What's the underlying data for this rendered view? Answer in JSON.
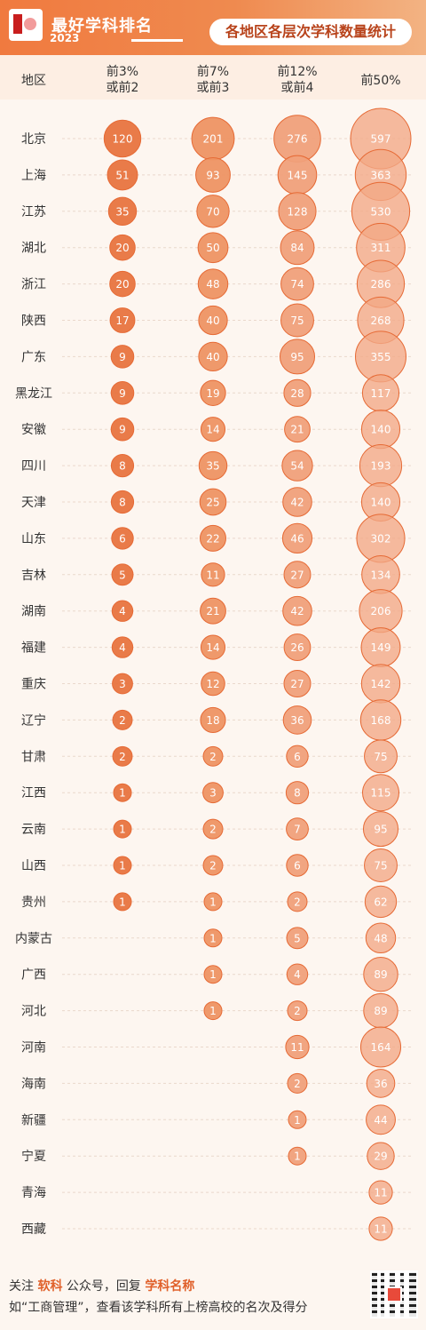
{
  "header": {
    "brand_title": "最好学科排名",
    "brand_year": "2023",
    "page_title": "各地区各层次学科数量统计"
  },
  "columns": {
    "region": "地区",
    "tier1": "前3%\n或前2",
    "tier2": "前7%\n或前3",
    "tier3": "前12%\n或前4",
    "tier4": "前50%"
  },
  "chart_data": {
    "type": "table",
    "columns": [
      "前3%或前2",
      "前7%或前3",
      "前12%或前4",
      "前50%"
    ],
    "rows": [
      {
        "region": "北京",
        "values": [
          120,
          201,
          276,
          597
        ]
      },
      {
        "region": "上海",
        "values": [
          51,
          93,
          145,
          363
        ]
      },
      {
        "region": "江苏",
        "values": [
          35,
          70,
          128,
          530
        ]
      },
      {
        "region": "湖北",
        "values": [
          20,
          50,
          84,
          311
        ]
      },
      {
        "region": "浙江",
        "values": [
          20,
          48,
          74,
          286
        ]
      },
      {
        "region": "陕西",
        "values": [
          17,
          40,
          75,
          268
        ]
      },
      {
        "region": "广东",
        "values": [
          9,
          40,
          95,
          355
        ]
      },
      {
        "region": "黑龙江",
        "values": [
          9,
          19,
          28,
          117
        ]
      },
      {
        "region": "安徽",
        "values": [
          9,
          14,
          21,
          140
        ]
      },
      {
        "region": "四川",
        "values": [
          8,
          35,
          54,
          193
        ]
      },
      {
        "region": "天津",
        "values": [
          8,
          25,
          42,
          140
        ]
      },
      {
        "region": "山东",
        "values": [
          6,
          22,
          46,
          302
        ]
      },
      {
        "region": "吉林",
        "values": [
          5,
          11,
          27,
          134
        ]
      },
      {
        "region": "湖南",
        "values": [
          4,
          21,
          42,
          206
        ]
      },
      {
        "region": "福建",
        "values": [
          4,
          14,
          26,
          149
        ]
      },
      {
        "region": "重庆",
        "values": [
          3,
          12,
          27,
          142
        ]
      },
      {
        "region": "辽宁",
        "values": [
          2,
          18,
          36,
          168
        ]
      },
      {
        "region": "甘肃",
        "values": [
          2,
          2,
          6,
          75
        ]
      },
      {
        "region": "江西",
        "values": [
          1,
          3,
          8,
          115
        ]
      },
      {
        "region": "云南",
        "values": [
          1,
          2,
          7,
          95
        ]
      },
      {
        "region": "山西",
        "values": [
          1,
          2,
          6,
          75
        ]
      },
      {
        "region": "贵州",
        "values": [
          1,
          1,
          2,
          62
        ]
      },
      {
        "region": "内蒙古",
        "values": [
          null,
          1,
          5,
          48
        ]
      },
      {
        "region": "广西",
        "values": [
          null,
          1,
          4,
          89
        ]
      },
      {
        "region": "河北",
        "values": [
          null,
          1,
          2,
          89
        ]
      },
      {
        "region": "河南",
        "values": [
          null,
          null,
          11,
          164
        ]
      },
      {
        "region": "海南",
        "values": [
          null,
          null,
          2,
          36
        ]
      },
      {
        "region": "新疆",
        "values": [
          null,
          null,
          1,
          44
        ]
      },
      {
        "region": "宁夏",
        "values": [
          null,
          null,
          1,
          29
        ]
      },
      {
        "region": "青海",
        "values": [
          null,
          null,
          null,
          11
        ]
      },
      {
        "region": "西藏",
        "values": [
          null,
          null,
          null,
          11
        ]
      }
    ],
    "colors": {
      "tier1": "#e8743f",
      "tier2": "#ee9463",
      "tier3": "#f0a07a",
      "tier4": "#f2a885",
      "stroke": "#e66a35"
    }
  },
  "footer": {
    "line1_prefix": "关注 ",
    "line1_highlight1": "软科",
    "line1_mid": " 公众号，回复 ",
    "line1_highlight2": "学科名称",
    "line2": "如“工商管理”，查看该学科所有上榜高校的名次及得分"
  }
}
